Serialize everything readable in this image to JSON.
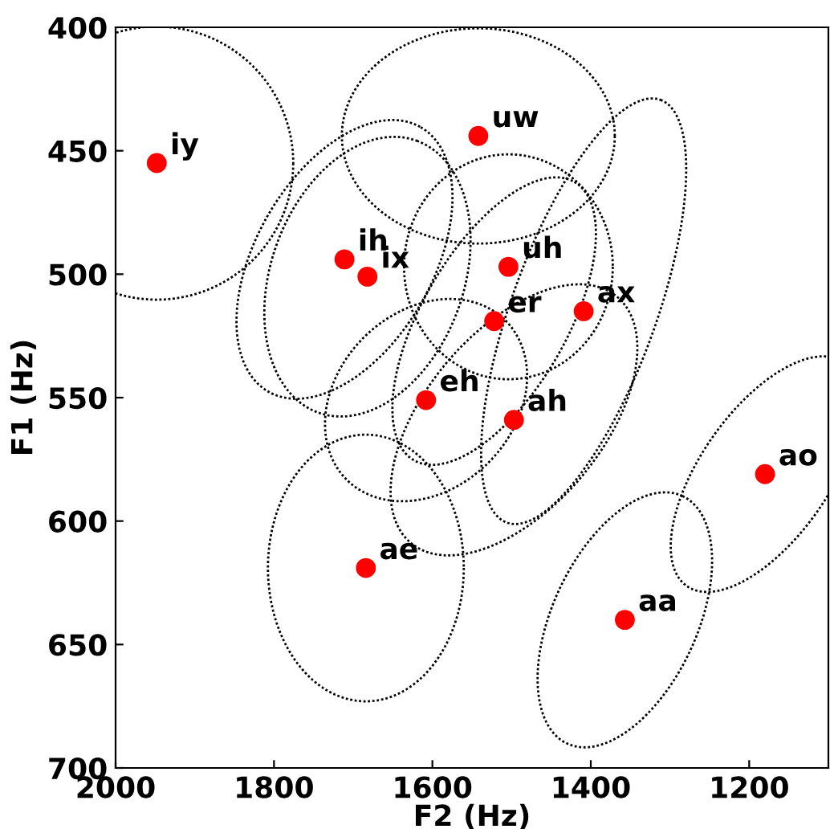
{
  "chart_data": {
    "type": "scatter",
    "xlabel": "F2 (Hz)",
    "ylabel": "F1 (Hz)",
    "xlim": [
      2000,
      1100
    ],
    "ylim": [
      700,
      400
    ],
    "xticks": [
      2000,
      1800,
      1600,
      1400,
      1200
    ],
    "yticks": [
      400,
      450,
      500,
      550,
      600,
      650,
      700
    ],
    "grid": false,
    "series": [
      {
        "color": "#ff0000",
        "marker": "circle",
        "x": [
          1948,
          1542,
          1711,
          1682,
          1504,
          1522,
          1409,
          1608,
          1497,
          1180,
          1684,
          1357
        ],
        "values": [
          455,
          444,
          494,
          501,
          497,
          519,
          515,
          551,
          559,
          581,
          619,
          640
        ]
      }
    ],
    "annotations": [
      {
        "text": "iy",
        "x": 1948,
        "y": 455
      },
      {
        "text": "uw",
        "x": 1542,
        "y": 444
      },
      {
        "text": "ih",
        "x": 1711,
        "y": 494
      },
      {
        "text": "ix",
        "x": 1682,
        "y": 501
      },
      {
        "text": "uh",
        "x": 1504,
        "y": 497
      },
      {
        "text": "er",
        "x": 1522,
        "y": 519
      },
      {
        "text": "ax",
        "x": 1409,
        "y": 515
      },
      {
        "text": "eh",
        "x": 1608,
        "y": 551
      },
      {
        "text": "ah",
        "x": 1497,
        "y": 559
      },
      {
        "text": "ao",
        "x": 1180,
        "y": 581
      },
      {
        "text": "ae",
        "x": 1684,
        "y": 619
      },
      {
        "text": "aa",
        "x": 1357,
        "y": 640
      }
    ]
  }
}
